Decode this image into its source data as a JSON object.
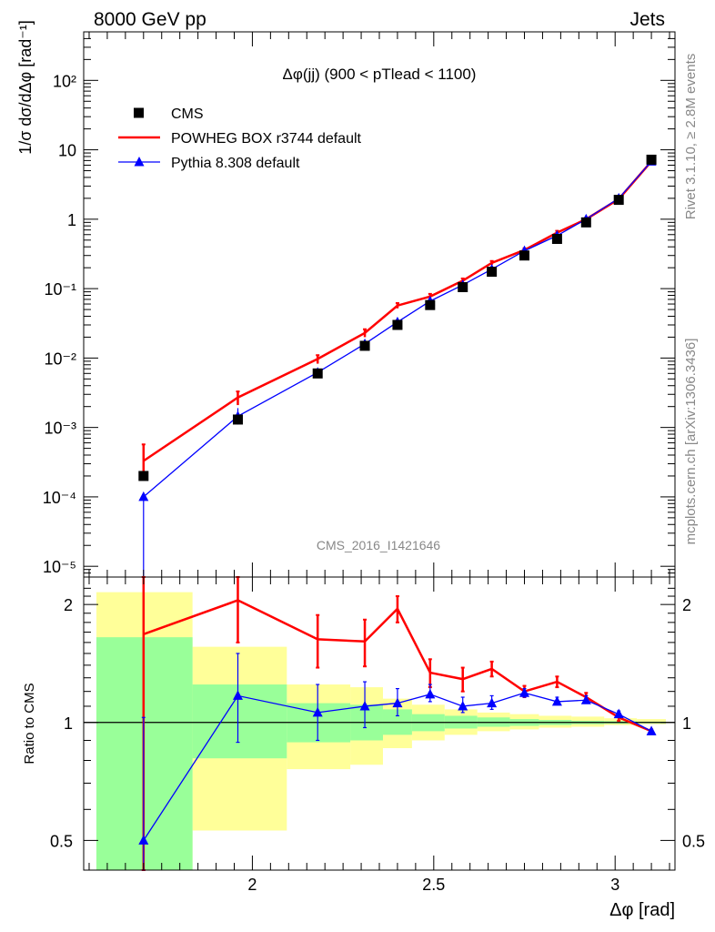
{
  "header": {
    "left": "8000 GeV pp",
    "right": "Jets"
  },
  "side_labels": {
    "rivet": "Rivet 3.1.10, ≥ 2.8M events",
    "mcplots": "mcplots.cern.ch [arXiv:1306.3436]"
  },
  "plot_title": "Δφ(jj) (900 < pTlead <  1100)",
  "analysis_id": "CMS_2016_I1421646",
  "chart_data": [
    {
      "type": "line",
      "panel": "main",
      "ylabel": "1/σ dσ/dΔφ [rad⁻¹]",
      "yscale": "log",
      "ylim": [
        7e-06,
        500
      ],
      "xlim": [
        1.535,
        3.165
      ],
      "ytick_labels": [
        "10⁻⁵",
        "10⁻⁴",
        "10⁻³",
        "10⁻²",
        "10⁻¹",
        "1",
        "10",
        "10²"
      ],
      "legend": {
        "placement": "top-left"
      },
      "series": [
        {
          "name": "CMS",
          "color": "#000000",
          "marker": "square",
          "x": [
            1.7,
            1.96,
            2.18,
            2.31,
            2.4,
            2.49,
            2.58,
            2.66,
            2.75,
            2.84,
            2.92,
            3.01,
            3.1
          ],
          "y": [
            0.0002,
            0.0013,
            0.006,
            0.015,
            0.03,
            0.058,
            0.105,
            0.175,
            0.3,
            0.52,
            0.9,
            1.9,
            7.2
          ]
        },
        {
          "name": "POWHEG BOX r3744 default",
          "color": "#ff0000",
          "marker": "none",
          "x": [
            1.7,
            1.96,
            2.18,
            2.31,
            2.4,
            2.49,
            2.58,
            2.66,
            2.75,
            2.84,
            2.92,
            3.01,
            3.1
          ],
          "y": [
            0.00033,
            0.0027,
            0.0097,
            0.023,
            0.057,
            0.077,
            0.13,
            0.235,
            0.36,
            0.64,
            1.0,
            1.95,
            6.8
          ],
          "err_low": [
            0.0002,
            0.0021,
            0.0083,
            0.02,
            0.052,
            0.07,
            0.12,
            0.22,
            0.34,
            0.6,
            0.95,
            1.9,
            6.7
          ],
          "err_high": [
            0.00057,
            0.0033,
            0.011,
            0.026,
            0.062,
            0.084,
            0.14,
            0.25,
            0.38,
            0.68,
            1.05,
            2.0,
            6.9
          ]
        },
        {
          "name": "Pythia 8.308 default",
          "color": "#0000ff",
          "marker": "triangle",
          "x": [
            1.7,
            1.96,
            2.18,
            2.31,
            2.4,
            2.49,
            2.58,
            2.66,
            2.75,
            2.84,
            2.92,
            3.01,
            3.1
          ],
          "y": [
            0.0001,
            0.00145,
            0.0062,
            0.016,
            0.033,
            0.066,
            0.113,
            0.19,
            0.35,
            0.58,
            1.0,
            2.0,
            6.8
          ],
          "err_low": [
            7e-06,
            0.0011,
            0.0055,
            0.0145,
            0.031,
            0.063,
            0.108,
            0.183,
            0.34,
            0.565,
            0.98,
            1.97,
            6.75
          ],
          "err_high": [
            0.0001,
            0.0019,
            0.0068,
            0.0175,
            0.035,
            0.069,
            0.118,
            0.197,
            0.36,
            0.595,
            1.02,
            2.03,
            6.85
          ]
        }
      ]
    },
    {
      "type": "line",
      "panel": "ratio",
      "ylabel": "Ratio to CMS",
      "xlabel": "Δφ [rad]",
      "yscale": "log",
      "ylim": [
        0.42,
        2.35
      ],
      "xlim": [
        1.535,
        3.165
      ],
      "xticks": [
        2,
        2.5,
        3
      ],
      "yticks": [
        0.5,
        1,
        2
      ],
      "bands": {
        "bin_edges": [
          1.57,
          1.835,
          2.095,
          2.27,
          2.36,
          2.44,
          2.53,
          2.62,
          2.71,
          2.79,
          2.88,
          2.97,
          3.06,
          3.14
        ],
        "yellow_low": [
          0.35,
          0.53,
          0.76,
          0.78,
          0.86,
          0.9,
          0.93,
          0.95,
          0.96,
          0.97,
          0.975,
          0.985,
          0.99
        ],
        "yellow_high": [
          2.15,
          1.56,
          1.25,
          1.23,
          1.15,
          1.11,
          1.08,
          1.06,
          1.05,
          1.04,
          1.035,
          1.025,
          1.02
        ],
        "green_low": [
          0.35,
          0.81,
          0.89,
          0.9,
          0.93,
          0.95,
          0.965,
          0.975,
          0.98,
          0.985,
          0.99,
          0.993,
          0.995
        ],
        "green_high": [
          1.65,
          1.25,
          1.12,
          1.11,
          1.08,
          1.05,
          1.04,
          1.03,
          1.02,
          1.015,
          1.01,
          1.008,
          1.005
        ]
      },
      "series": [
        {
          "name": "POWHEG BOX r3744 default",
          "color": "#ff0000",
          "x": [
            1.7,
            1.96,
            2.18,
            2.31,
            2.4,
            2.49,
            2.58,
            2.66,
            2.75,
            2.84,
            2.92,
            3.01,
            3.1
          ],
          "y": [
            1.68,
            2.05,
            1.63,
            1.61,
            1.95,
            1.34,
            1.29,
            1.37,
            1.2,
            1.27,
            1.16,
            1.03,
            0.95
          ],
          "err_low": [
            0.42,
            1.6,
            1.38,
            1.39,
            1.8,
            1.23,
            1.2,
            1.31,
            1.16,
            1.23,
            1.13,
            1.01,
            0.94
          ],
          "err_high": [
            2.4,
            2.45,
            1.88,
            1.83,
            2.1,
            1.45,
            1.38,
            1.43,
            1.24,
            1.31,
            1.19,
            1.05,
            0.96
          ]
        },
        {
          "name": "Pythia 8.308 default",
          "color": "#0000ff",
          "x": [
            1.7,
            1.96,
            2.18,
            2.31,
            2.4,
            2.49,
            2.58,
            2.66,
            2.75,
            2.84,
            2.92,
            3.01,
            3.1
          ],
          "y": [
            0.5,
            1.17,
            1.06,
            1.1,
            1.12,
            1.18,
            1.1,
            1.12,
            1.19,
            1.13,
            1.14,
            1.05,
            0.95
          ],
          "err_low": [
            0.35,
            0.89,
            0.9,
            0.97,
            1.04,
            1.13,
            1.06,
            1.08,
            1.16,
            1.11,
            1.12,
            1.04,
            0.945
          ],
          "err_high": [
            1.03,
            1.5,
            1.25,
            1.27,
            1.22,
            1.25,
            1.16,
            1.17,
            1.22,
            1.16,
            1.17,
            1.07,
            0.955
          ]
        }
      ]
    }
  ]
}
